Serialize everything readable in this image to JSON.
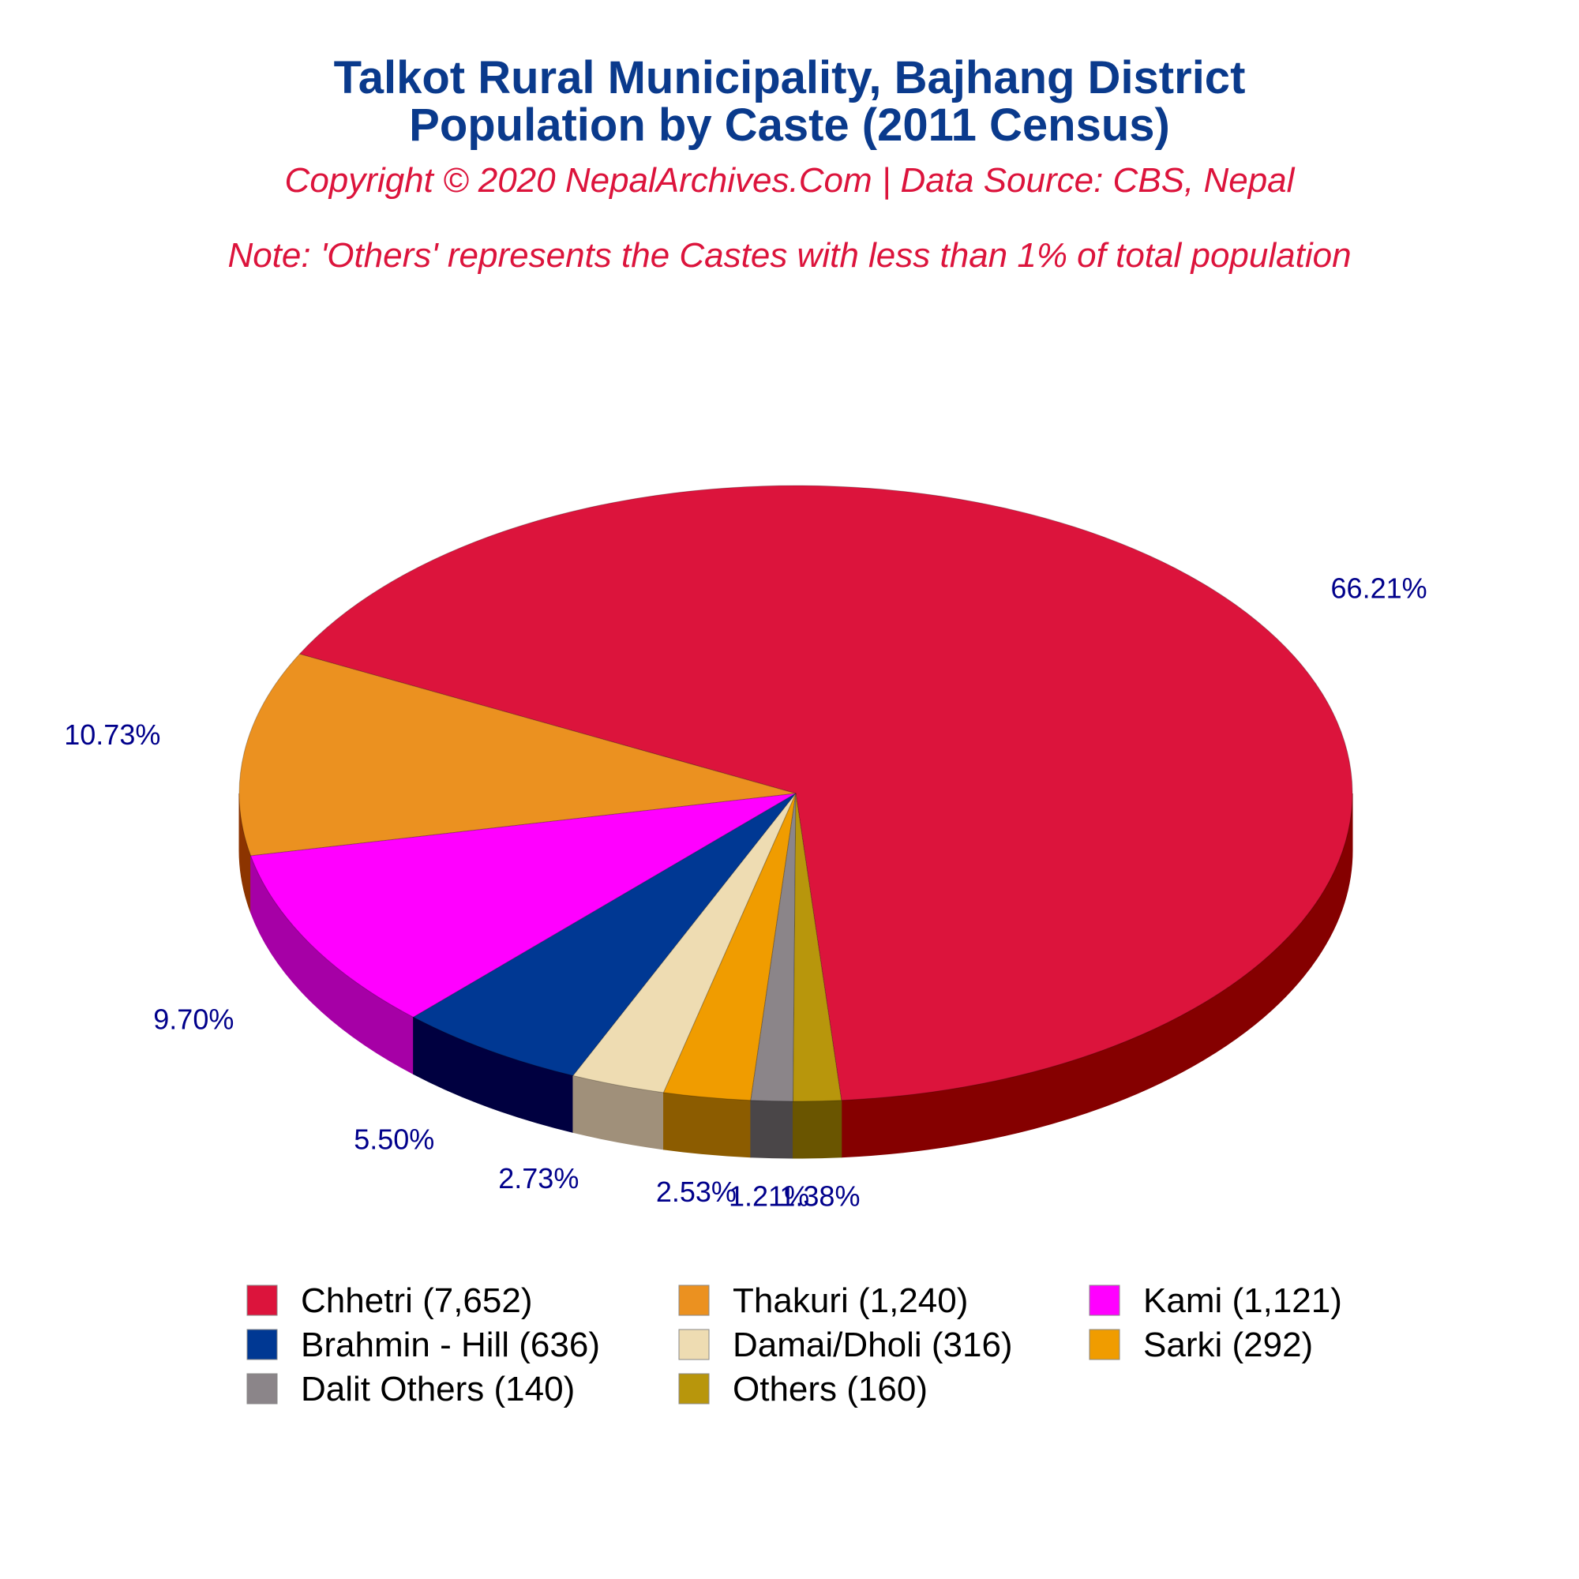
{
  "chart_data": {
    "type": "pie",
    "title_line1": "Talkot Rural Municipality, Bajhang District",
    "title_line2": "Population by Caste (2011 Census)",
    "subtitle": "Copyright © 2020 NepalArchives.Com | Data Source: CBS, Nepal",
    "note": "Note: 'Others' represents the Castes with less than 1% of total population",
    "slices": [
      {
        "legend_label": "Chhetri (7,652)",
        "value": 7652,
        "percent_label": "66.21%",
        "color": "#dc143c",
        "side_color": "#850000"
      },
      {
        "legend_label": "Thakuri (1,240)",
        "value": 1240,
        "percent_label": "10.73%",
        "color": "#eb9120",
        "side_color": "#8c3400"
      },
      {
        "legend_label": "Kami (1,121)",
        "value": 1121,
        "percent_label": "9.70%",
        "color": "#ff00ff",
        "side_color": "#a600a6"
      },
      {
        "legend_label": "Brahmin - Hill (636)",
        "value": 636,
        "percent_label": "5.50%",
        "color": "#003893",
        "side_color": "#000040"
      },
      {
        "legend_label": "Damai/Dholi (316)",
        "value": 316,
        "percent_label": "2.73%",
        "color": "#eedcb2",
        "side_color": "#a0907a"
      },
      {
        "legend_label": "Sarki (292)",
        "value": 292,
        "percent_label": "2.53%",
        "color": "#f09c00",
        "side_color": "#8c5c00"
      },
      {
        "legend_label": "Dalit Others (140)",
        "value": 140,
        "percent_label": "1.21%",
        "color": "#8b8589",
        "side_color": "#4a4648"
      },
      {
        "legend_label": "Others (160)",
        "value": 160,
        "percent_label": "1.38%",
        "color": "#b8960c",
        "side_color": "#6a5500"
      }
    ]
  }
}
